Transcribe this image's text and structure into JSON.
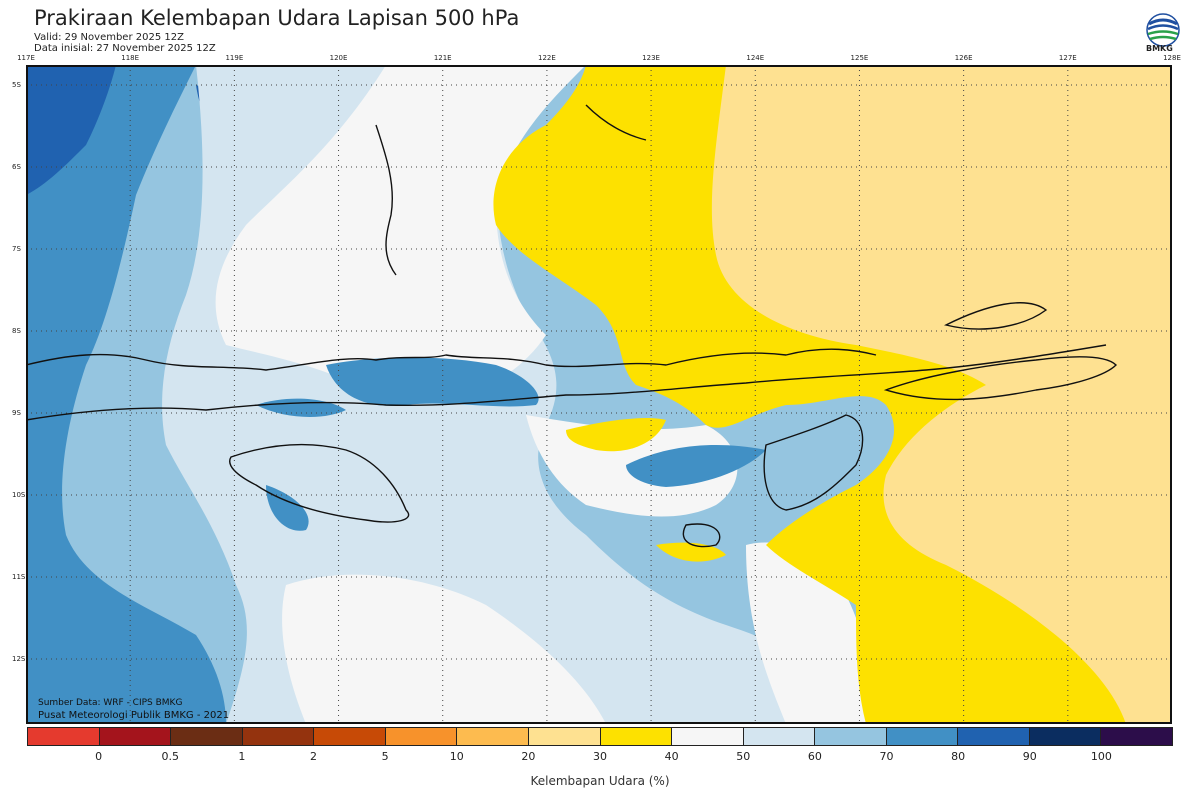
{
  "header": {
    "title": "Prakiraan Kelembapan Udara Lapisan 500 hPa",
    "valid": "Valid: 29 November 2025 12Z",
    "init": "Data inisial: 27 November 2025 12Z",
    "logo_text": "BMKG"
  },
  "map": {
    "lon_labels": [
      "117E",
      "118E",
      "119E",
      "120E",
      "121E",
      "122E",
      "123E",
      "124E",
      "125E",
      "126E",
      "127E",
      "128E"
    ],
    "lat_labels": [
      "5S",
      "6S",
      "7S",
      "8S",
      "9S",
      "10S",
      "11S",
      "12S"
    ]
  },
  "footer": {
    "source": "Sumber Data: WRF - CIPS BMKG",
    "credit": "Pusat Meteorologi Publik BMKG - 2021"
  },
  "legend": {
    "title": "Kelembapan Udara (%)",
    "colors": [
      "#e53a2e",
      "#a4141c",
      "#6b2d14",
      "#94330e",
      "#c74a06",
      "#f7922b",
      "#fdbb4f",
      "#fee191",
      "#fde100",
      "#f6f6f6",
      "#d4e5f0",
      "#95c5e0",
      "#4190c5",
      "#2062b0",
      "#0b2d60",
      "#2c0d4a"
    ],
    "ticks": [
      "0",
      "0.5",
      "1",
      "2",
      "5",
      "10",
      "20",
      "30",
      "40",
      "50",
      "60",
      "70",
      "80",
      "90",
      "100"
    ]
  }
}
